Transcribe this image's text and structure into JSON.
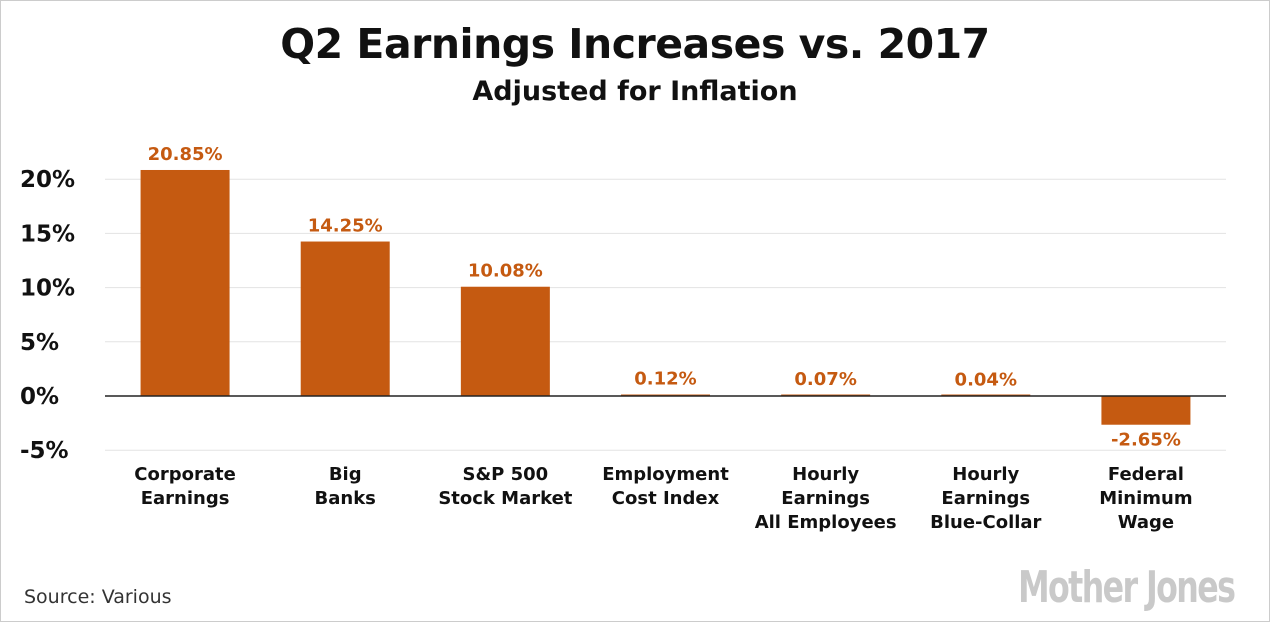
{
  "chart_data": {
    "type": "bar",
    "title": "Q2 Earnings Increases vs. 2017",
    "subtitle": "Adjusted for Inflation",
    "categories": [
      [
        "Corporate",
        "Earnings"
      ],
      [
        "Big",
        "Banks"
      ],
      [
        "S&P 500",
        "Stock Market"
      ],
      [
        "Employment",
        "Cost Index"
      ],
      [
        "Hourly",
        "Earnings",
        "All Employees"
      ],
      [
        "Hourly",
        "Earnings",
        "Blue-Collar"
      ],
      [
        "Federal",
        "Minimum",
        "Wage"
      ]
    ],
    "values": [
      20.85,
      14.25,
      10.08,
      0.12,
      0.07,
      0.04,
      -2.65
    ],
    "data_labels": [
      "20.85%",
      "14.25%",
      "10.08%",
      "0.12%",
      "0.07%",
      "0.04%",
      "-2.65%"
    ],
    "yticks": [
      20,
      15,
      10,
      5,
      0,
      -5
    ],
    "ytick_labels": [
      "20%",
      "15%",
      "10%",
      "5%",
      "0%",
      "-5%"
    ],
    "ylim": [
      -5,
      20
    ],
    "xlabel": "",
    "ylabel": "",
    "grid": true,
    "bar_color": "#c55a11",
    "label_color": "#c55a11"
  },
  "footer": {
    "source": "Source: Various",
    "logo": "Mother Jones"
  }
}
